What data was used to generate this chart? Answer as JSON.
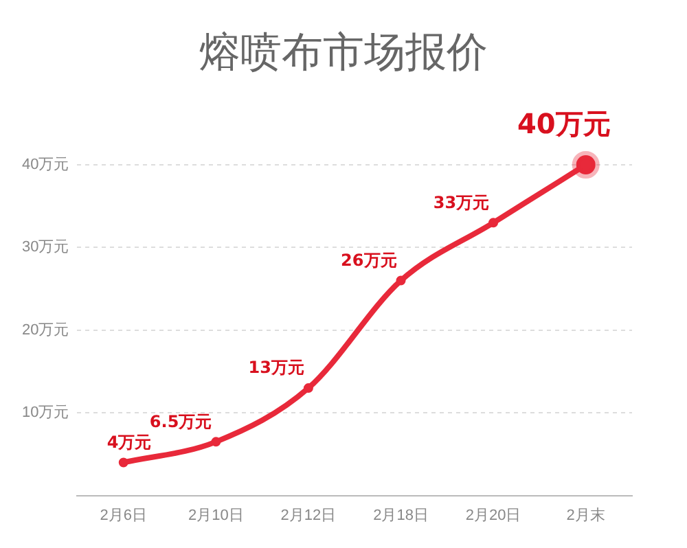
{
  "chart_data": {
    "type": "line",
    "title": "熔喷布市场报价",
    "categories": [
      "2月6日",
      "2月10日",
      "2月12日",
      "2月18日",
      "2月20日",
      "2月末"
    ],
    "series": [
      {
        "color": "#e8293a",
        "values": [
          4,
          6.5,
          13,
          26,
          33,
          40
        ],
        "value_labels": [
          "4万元",
          "6.5万元",
          "13万元",
          "26万元",
          "33万元",
          "40万元"
        ]
      }
    ],
    "ylim": [
      0,
      40
    ],
    "yticks": [
      {
        "value": 10,
        "label": "10万元"
      },
      {
        "value": 20,
        "label": "20万元"
      },
      {
        "value": 30,
        "label": "30万元"
      },
      {
        "value": 40,
        "label": "40万元"
      }
    ],
    "grid": "y",
    "legend": false,
    "marker": "circle",
    "line_style": "solid"
  }
}
